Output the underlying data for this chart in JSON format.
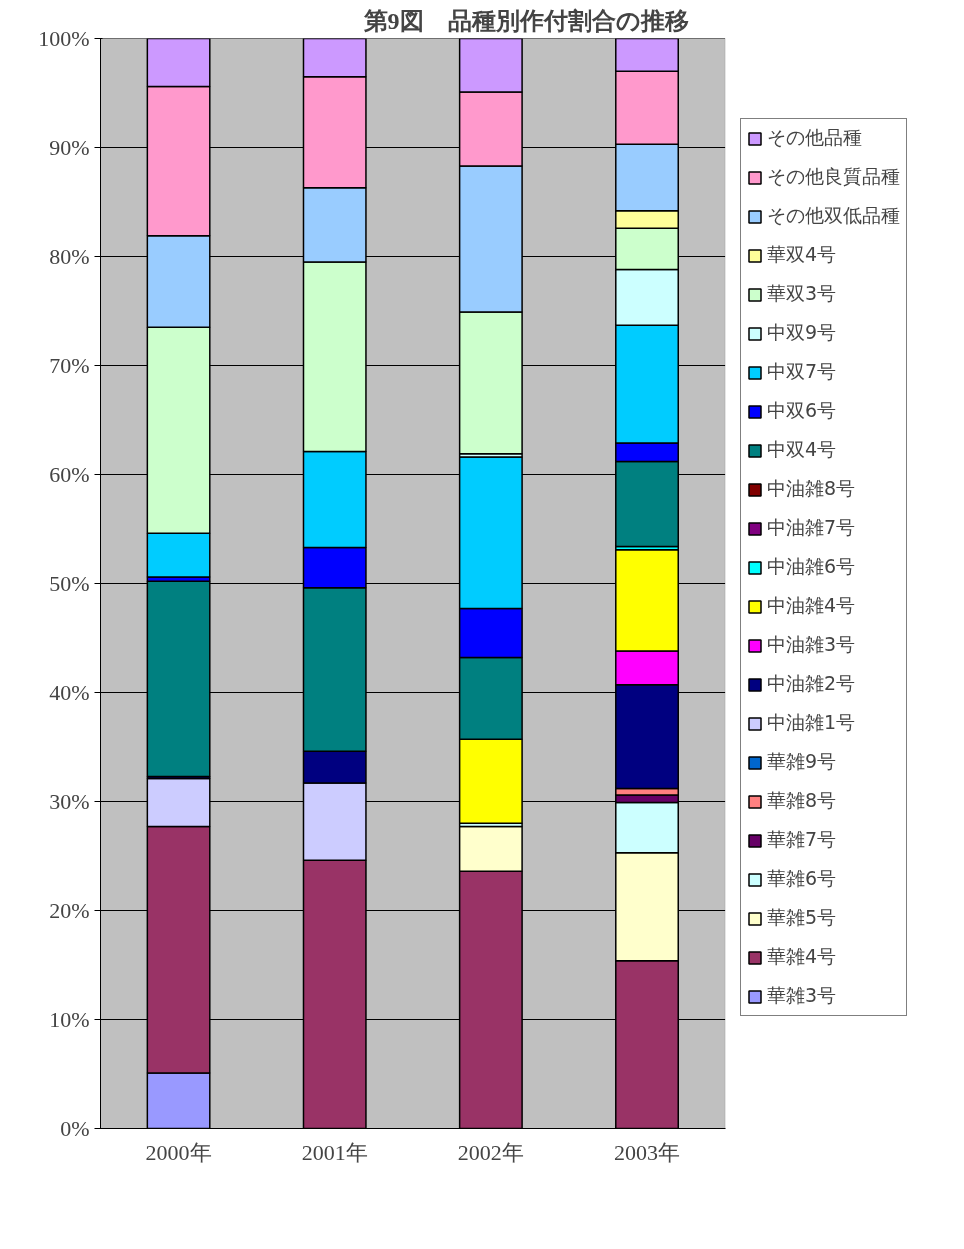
{
  "chart_data": {
    "type": "bar",
    "title": "第9図　品種別作付割合の推移",
    "stacked": true,
    "categories": [
      "2000年",
      "2001年",
      "2002年",
      "2003年"
    ],
    "ylim": [
      0,
      100
    ],
    "yticks": [
      {
        "value": 0,
        "label": "0%"
      },
      {
        "value": 10,
        "label": "10%"
      },
      {
        "value": 20,
        "label": "20%"
      },
      {
        "value": 30,
        "label": "30%"
      },
      {
        "value": 40,
        "label": "40%"
      },
      {
        "value": 50,
        "label": "50%"
      },
      {
        "value": 60,
        "label": "60%"
      },
      {
        "value": 70,
        "label": "70%"
      },
      {
        "value": 80,
        "label": "80%"
      },
      {
        "value": 90,
        "label": "90%"
      },
      {
        "value": 100,
        "label": "100%"
      }
    ],
    "grid": "y",
    "legend": "right",
    "series": [
      {
        "name": "華雑3号",
        "color": "#9999ff",
        "values": [
          5.1,
          null,
          null,
          null
        ]
      },
      {
        "name": "華雑4号",
        "color": "#993366",
        "values": [
          22.6,
          24.6,
          23.6,
          15.4
        ]
      },
      {
        "name": "華雑5号",
        "color": "#ffffcc",
        "values": [
          null,
          null,
          4.1,
          9.9
        ]
      },
      {
        "name": "華雑6号",
        "color": "#ccffff",
        "values": [
          null,
          null,
          0.3,
          4.6
        ]
      },
      {
        "name": "華雑7号",
        "color": "#660066",
        "values": [
          null,
          null,
          null,
          0.7
        ]
      },
      {
        "name": "華雑8号",
        "color": "#ff8080",
        "values": [
          null,
          null,
          null,
          0.6
        ]
      },
      {
        "name": "華雑9号",
        "color": "#0066cc",
        "values": [
          null,
          null,
          null,
          null
        ]
      },
      {
        "name": "中油雑1号",
        "color": "#ccccff",
        "values": [
          4.4,
          7.1,
          null,
          null
        ]
      },
      {
        "name": "中油雑2号",
        "color": "#000080",
        "values": [
          0.2,
          2.9,
          null,
          9.5
        ]
      },
      {
        "name": "中油雑3号",
        "color": "#ff00ff",
        "values": [
          null,
          null,
          null,
          3.1
        ]
      },
      {
        "name": "中油雑4号",
        "color": "#ffff00",
        "values": [
          null,
          null,
          7.7,
          9.3
        ]
      },
      {
        "name": "中油雑6号",
        "color": "#00ffff",
        "values": [
          null,
          null,
          null,
          0.3
        ]
      },
      {
        "name": "中油雑7号",
        "color": "#800080",
        "values": [
          null,
          null,
          null,
          null
        ]
      },
      {
        "name": "中油雑8号",
        "color": "#800000",
        "values": [
          null,
          null,
          null,
          null
        ]
      },
      {
        "name": "中双4号",
        "color": "#008080",
        "values": [
          17.9,
          15.0,
          7.5,
          7.8
        ]
      },
      {
        "name": "中双6号",
        "color": "#0000ff",
        "values": [
          0.4,
          3.7,
          4.5,
          1.7
        ]
      },
      {
        "name": "中双7号",
        "color": "#00ccff",
        "values": [
          4.0,
          8.8,
          13.9,
          10.8
        ]
      },
      {
        "name": "中双9号",
        "color": "#ccffff",
        "values": [
          null,
          null,
          0.3,
          5.1
        ]
      },
      {
        "name": "華双3号",
        "color": "#ccffcc",
        "values": [
          18.9,
          17.4,
          13.0,
          3.8
        ]
      },
      {
        "name": "華双4号",
        "color": "#ffff99",
        "values": [
          null,
          null,
          null,
          1.6
        ]
      },
      {
        "name": "その他双低品種",
        "color": "#99ccff",
        "values": [
          8.4,
          6.8,
          13.4,
          6.1
        ]
      },
      {
        "name": "その他良質品種",
        "color": "#ff99cc",
        "values": [
          13.7,
          10.2,
          6.8,
          6.7
        ]
      },
      {
        "name": "その他品種",
        "color": "#cc99ff",
        "values": [
          4.4,
          3.5,
          4.9,
          3.0
        ]
      }
    ]
  }
}
